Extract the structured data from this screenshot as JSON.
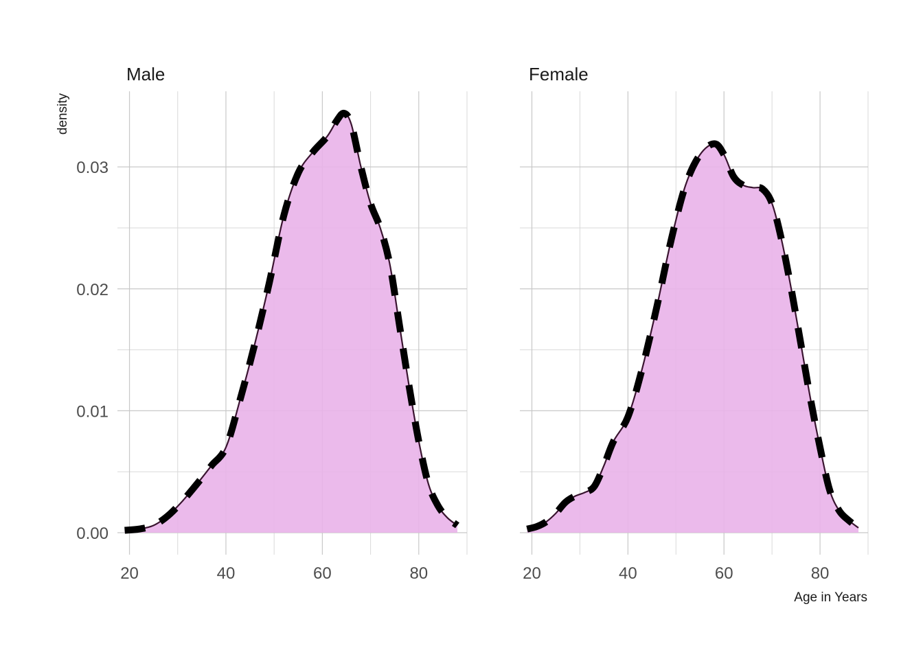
{
  "chart_data": {
    "type": "area",
    "xlabel": "Age in Years",
    "ylabel": "density",
    "xlim": [
      17.5,
      90
    ],
    "ylim": [
      -0.0018,
      0.0362
    ],
    "x_ticks": [
      20,
      40,
      60,
      80
    ],
    "y_ticks": [
      0.0,
      0.01,
      0.02,
      0.03
    ],
    "y_tick_labels": [
      "0.00",
      "0.01",
      "0.02",
      "0.03"
    ],
    "grid": true,
    "legend": "none",
    "colors": {
      "fill": "#e9b3e9",
      "outline": "#3a1430",
      "dashed": "#000000",
      "grid": "#c8c8c8"
    },
    "panels": [
      {
        "name": "Male",
        "x": [
          19,
          22,
          25,
          28,
          31,
          34,
          37,
          40,
          43,
          46,
          49,
          52,
          55,
          58,
          61,
          63,
          64.5,
          66,
          68,
          70,
          72,
          74,
          76,
          78,
          80,
          82,
          84,
          86,
          88
        ],
        "y": [
          0.0002,
          0.0003,
          0.0006,
          0.0014,
          0.0026,
          0.004,
          0.0055,
          0.007,
          0.011,
          0.0155,
          0.0205,
          0.026,
          0.0295,
          0.0312,
          0.0325,
          0.0338,
          0.0344,
          0.0335,
          0.03,
          0.027,
          0.025,
          0.022,
          0.017,
          0.012,
          0.0075,
          0.004,
          0.0022,
          0.0012,
          0.0006
        ]
      },
      {
        "name": "Female",
        "x": [
          19,
          21,
          23,
          25,
          27,
          29,
          31,
          33,
          35,
          37,
          40,
          43,
          46,
          49,
          52,
          55,
          58,
          60,
          62,
          64,
          66,
          68,
          70,
          72,
          74,
          76,
          78,
          80,
          82,
          84,
          86,
          88
        ],
        "y": [
          0.0003,
          0.0005,
          0.0009,
          0.0016,
          0.0025,
          0.003,
          0.0033,
          0.0038,
          0.0055,
          0.0075,
          0.0095,
          0.0135,
          0.0185,
          0.024,
          0.0285,
          0.031,
          0.0319,
          0.031,
          0.0292,
          0.0285,
          0.0283,
          0.0282,
          0.027,
          0.024,
          0.02,
          0.0155,
          0.011,
          0.007,
          0.0035,
          0.0018,
          0.001,
          0.0004
        ]
      }
    ]
  }
}
